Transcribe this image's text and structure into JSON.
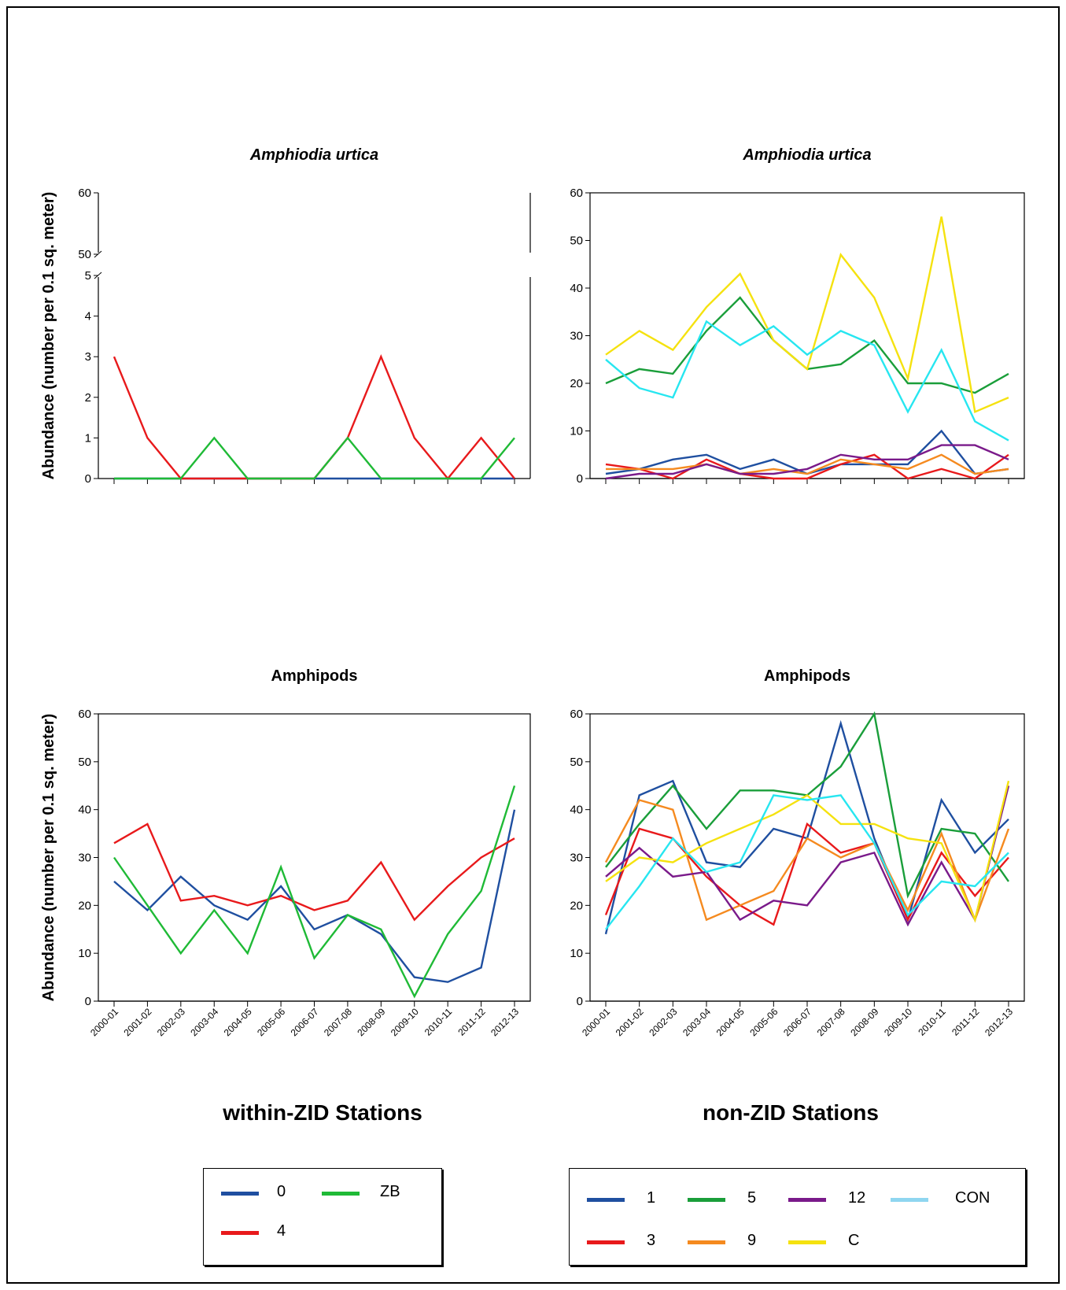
{
  "colors": {
    "s0": "#1f4fa0",
    "s4": "#e8191b",
    "sZB": "#1fba36",
    "n1": "#1f4fa0",
    "n3": "#e8191b",
    "n5": "#1a9e3a",
    "n9": "#f58a1f",
    "n12": "#7a1a8a",
    "nC": "#f5e20f",
    "nCON": "#27e6f0",
    "nCONlegend": "#8fd6f0"
  },
  "x_labels": [
    "2000-01",
    "2001-02",
    "2002-03",
    "2003-04",
    "2004-05",
    "2005-06",
    "2006-07",
    "2007-08",
    "2008-09",
    "2009-10",
    "2010-11",
    "2011-12",
    "2012-13"
  ],
  "y_axis_label": "Abundance (number per 0.1 sq. meter)",
  "chart_data": [
    {
      "type": "line",
      "title": "Amphiodia urtica",
      "ylabel": "Abundance (number per 0.1 sq. meter)",
      "ylim": [
        0,
        60
      ],
      "broken_axis": {
        "lower": [
          0,
          5
        ],
        "upper": [
          50,
          60
        ]
      },
      "yticks": [
        0,
        1,
        2,
        3,
        4,
        5,
        50,
        60
      ],
      "series": [
        {
          "name": "0",
          "color_key": "s0",
          "values": [
            0,
            0,
            0,
            0,
            0,
            0,
            0,
            0,
            0,
            0,
            0,
            0,
            0
          ]
        },
        {
          "name": "4",
          "color_key": "s4",
          "values": [
            3,
            1,
            0,
            0,
            0,
            0,
            0,
            1,
            3,
            1,
            0,
            1,
            0
          ]
        },
        {
          "name": "ZB",
          "color_key": "sZB",
          "values": [
            0,
            0,
            0,
            1,
            0,
            0,
            0,
            1,
            0,
            0,
            0,
            0,
            1
          ]
        }
      ]
    },
    {
      "type": "line",
      "title": "Amphiodia urtica",
      "ylim": [
        0,
        60
      ],
      "yticks": [
        0,
        10,
        20,
        30,
        40,
        50,
        60
      ],
      "series": [
        {
          "name": "1",
          "color_key": "n1",
          "values": [
            1,
            2,
            4,
            5,
            2,
            4,
            1,
            3,
            3,
            3,
            10,
            1,
            2
          ]
        },
        {
          "name": "3",
          "color_key": "n3",
          "values": [
            3,
            2,
            0,
            4,
            1,
            0,
            0,
            3,
            5,
            0,
            2,
            0,
            5
          ]
        },
        {
          "name": "5",
          "color_key": "n5",
          "values": [
            20,
            23,
            22,
            31,
            38,
            29,
            23,
            24,
            29,
            20,
            20,
            18,
            22
          ]
        },
        {
          "name": "9",
          "color_key": "n9",
          "values": [
            2,
            2,
            2,
            3,
            1,
            2,
            1,
            4,
            3,
            2,
            5,
            1,
            2
          ]
        },
        {
          "name": "12",
          "color_key": "n12",
          "values": [
            0,
            1,
            1,
            3,
            1,
            1,
            2,
            5,
            4,
            4,
            7,
            7,
            4
          ]
        },
        {
          "name": "C",
          "color_key": "nC",
          "values": [
            26,
            31,
            27,
            36,
            43,
            29,
            23,
            47,
            38,
            21,
            55,
            14,
            17
          ]
        },
        {
          "name": "CON",
          "color_key": "nCON",
          "values": [
            25,
            19,
            17,
            33,
            28,
            32,
            26,
            31,
            28,
            14,
            27,
            12,
            8
          ]
        }
      ]
    },
    {
      "type": "line",
      "title": "Amphipods",
      "ylabel": "Abundance (number per 0.1 sq. meter)",
      "ylim": [
        0,
        60
      ],
      "yticks": [
        0,
        10,
        20,
        30,
        40,
        50,
        60
      ],
      "series": [
        {
          "name": "0",
          "color_key": "s0",
          "values": [
            25,
            19,
            26,
            20,
            17,
            24,
            15,
            18,
            14,
            5,
            4,
            7,
            40
          ]
        },
        {
          "name": "4",
          "color_key": "s4",
          "values": [
            33,
            37,
            21,
            22,
            20,
            22,
            19,
            21,
            29,
            17,
            24,
            30,
            34
          ]
        },
        {
          "name": "ZB",
          "color_key": "sZB",
          "values": [
            30,
            20,
            10,
            19,
            10,
            28,
            9,
            18,
            15,
            1,
            14,
            23,
            45
          ]
        }
      ]
    },
    {
      "type": "line",
      "title": "Amphipods",
      "ylim": [
        0,
        60
      ],
      "yticks": [
        0,
        10,
        20,
        30,
        40,
        50,
        60
      ],
      "series": [
        {
          "name": "1",
          "color_key": "n1",
          "values": [
            14,
            43,
            46,
            29,
            28,
            36,
            34,
            58,
            34,
            17,
            42,
            31,
            38
          ]
        },
        {
          "name": "3",
          "color_key": "n3",
          "values": [
            18,
            36,
            34,
            26,
            20,
            16,
            37,
            31,
            33,
            17,
            31,
            22,
            30
          ]
        },
        {
          "name": "5",
          "color_key": "n5",
          "values": [
            28,
            37,
            45,
            36,
            44,
            44,
            43,
            49,
            60,
            22,
            36,
            35,
            25
          ]
        },
        {
          "name": "9",
          "color_key": "n9",
          "values": [
            29,
            42,
            40,
            17,
            20,
            23,
            34,
            30,
            33,
            19,
            35,
            17,
            36
          ]
        },
        {
          "name": "12",
          "color_key": "n12",
          "values": [
            26,
            32,
            26,
            27,
            17,
            21,
            20,
            29,
            31,
            16,
            29,
            17,
            45
          ]
        },
        {
          "name": "C",
          "color_key": "nC",
          "values": [
            25,
            30,
            29,
            33,
            36,
            39,
            43,
            37,
            37,
            34,
            33,
            17,
            46
          ]
        },
        {
          "name": "CON",
          "color_key": "nCON",
          "values": [
            15,
            24,
            34,
            27,
            29,
            43,
            42,
            43,
            33,
            18,
            25,
            24,
            31
          ]
        }
      ]
    }
  ],
  "footer": {
    "left_title": "within-ZID Stations",
    "right_title": "non-ZID Stations",
    "left_legend": [
      {
        "label": "0",
        "color_key": "s0"
      },
      {
        "label": "ZB",
        "color_key": "sZB"
      },
      {
        "label": "4",
        "color_key": "s4"
      }
    ],
    "right_legend": [
      {
        "label": "1",
        "color_key": "n1"
      },
      {
        "label": "5",
        "color_key": "n5"
      },
      {
        "label": "12",
        "color_key": "n12"
      },
      {
        "label": "CON",
        "color_key": "nCONlegend"
      },
      {
        "label": "3",
        "color_key": "n3"
      },
      {
        "label": "9",
        "color_key": "n9"
      },
      {
        "label": "C",
        "color_key": "nC"
      }
    ]
  }
}
